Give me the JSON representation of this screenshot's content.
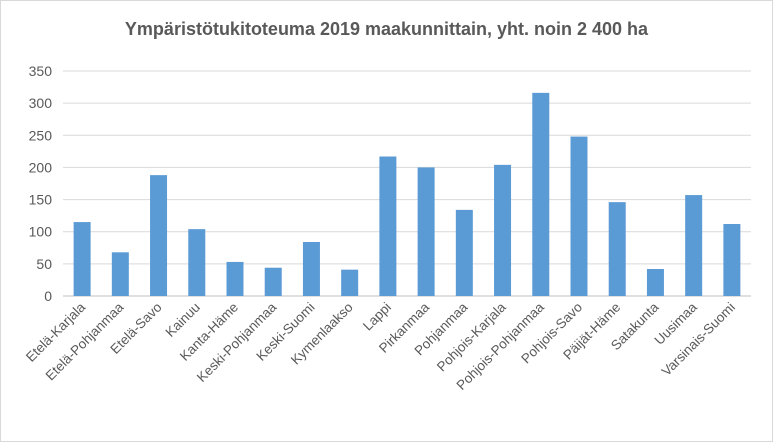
{
  "chart_data": {
    "type": "bar",
    "title": "Ympäristötukitoteuma 2019 maakunnittain, yht. noin 2 400 ha",
    "xlabel": "",
    "ylabel": "",
    "ylim": [
      0,
      350
    ],
    "yticks": [
      0,
      50,
      100,
      150,
      200,
      250,
      300,
      350
    ],
    "grid": true,
    "legend": "none",
    "bar_color": "#5b9bd5",
    "categories": [
      "Etelä-Karjala",
      "Etelä-Pohjanmaa",
      "Etelä-Savo",
      "Kainuu",
      "Kanta-Häme",
      "Keski-Pohjanmaa",
      "Keski-Suomi",
      "Kymenlaakso",
      "Lappi",
      "Pirkanmaa",
      "Pohjanmaa",
      "Pohjois-Karjala",
      "Pohjois-Pohjanmaa",
      "Pohjois-Savo",
      "Päijät-Häme",
      "Satakunta",
      "Uusimaa",
      "Varsinais-Suomi"
    ],
    "values": [
      115,
      68,
      188,
      104,
      53,
      44,
      84,
      41,
      217,
      200,
      134,
      204,
      316,
      248,
      146,
      42,
      157,
      112
    ]
  }
}
